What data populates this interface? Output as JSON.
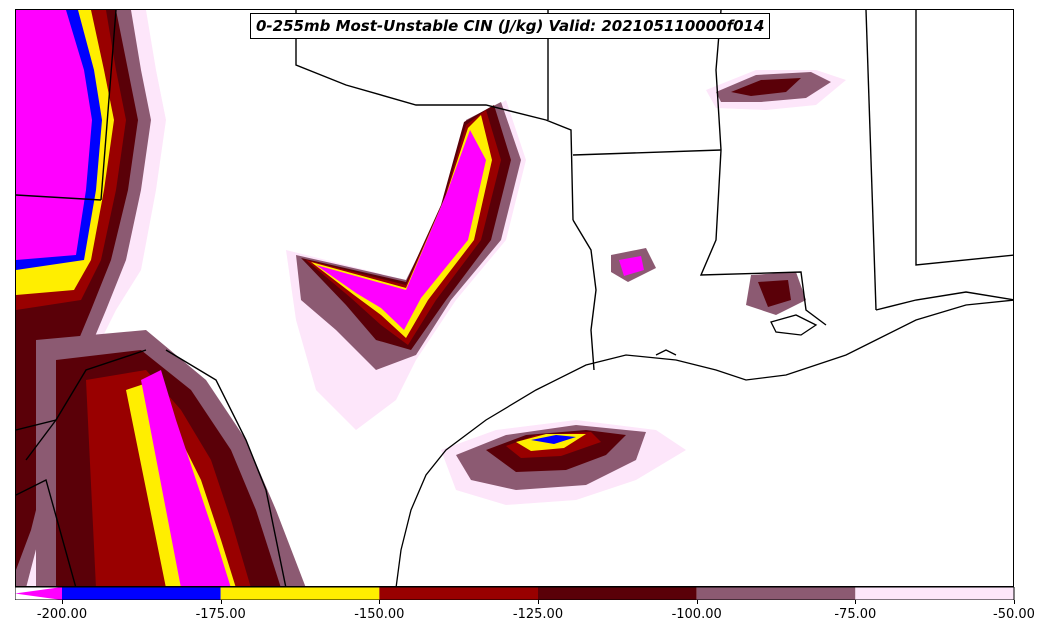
{
  "title": "0-255mb Most-Unstable CIN (J/kg) Valid: 202105110000f014",
  "colorbar": {
    "bins": [
      {
        "from": -200,
        "to": -175,
        "color": "#0000ff"
      },
      {
        "from": -175,
        "to": -150,
        "color": "#ffee00"
      },
      {
        "from": -150,
        "to": -125,
        "color": "#990000"
      },
      {
        "from": -125,
        "to": -100,
        "color": "#5a0008"
      },
      {
        "from": -100,
        "to": -75,
        "color": "#8c5a72"
      },
      {
        "from": -75,
        "to": -50,
        "color": "#fde6fa"
      }
    ],
    "extend_low_color": "#ff00ff",
    "ticks": [
      "-200.00",
      "-175.00",
      "-150.00",
      "-125.00",
      "-100.00",
      "-75.00",
      "-50.00"
    ]
  },
  "colors": {
    "below_-200": "#ff00ff",
    "c175": "#0000ff",
    "c150": "#ffee00",
    "c125": "#990000",
    "c100": "#5a0008",
    "c75": "#8c5a72",
    "c50": "#fde6fa",
    "boundary": "#000000"
  }
}
